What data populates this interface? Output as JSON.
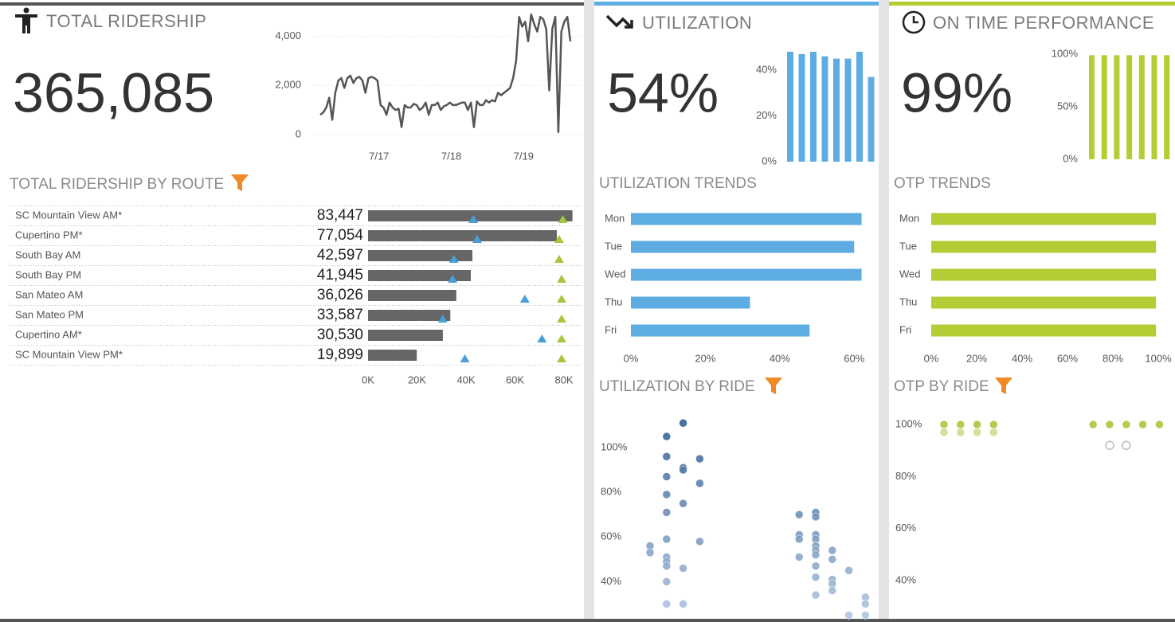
{
  "chart_data": [
    {
      "type": "line",
      "title": "TOTAL RIDERSHIP",
      "kpi": "365,085",
      "color": "#555555",
      "grid": true,
      "values": [
        800,
        900,
        1100,
        1500,
        600,
        1700,
        2200,
        2300,
        1900,
        2300,
        2400,
        2100,
        2300,
        2350,
        2200,
        1700,
        2300,
        2350,
        2300,
        2200,
        1200,
        1100,
        800,
        1300,
        1100,
        1000,
        1050,
        300,
        1200,
        1100,
        1100,
        1250,
        1200,
        1000,
        1100,
        1300,
        800,
        1200,
        1200,
        1300,
        1000,
        1150,
        1200,
        1300,
        1200,
        1200,
        1250,
        1300,
        1300,
        1000,
        1300,
        300,
        1350,
        1200,
        1200,
        1400,
        1300,
        1400,
        1350,
        1700,
        1600,
        1700,
        1800,
        1900,
        2300,
        3000,
        4800,
        4400,
        4600,
        3800,
        4900,
        4500,
        4200,
        4800,
        4700,
        4300,
        1800,
        4300,
        4800,
        100,
        4200,
        4600,
        4800,
        3800
      ],
      "xlim": [
        0,
        83
      ],
      "xticks": [
        {
          "value": 19.5,
          "label": "7/17"
        },
        {
          "value": 43.5,
          "label": "7/18"
        },
        {
          "value": 67.5,
          "label": "7/19"
        }
      ],
      "ylim": [
        -200,
        5000
      ],
      "yticks": [
        0,
        {
          "value": 2000,
          "label": "2,000"
        },
        {
          "value": 4000,
          "label": "4,000"
        }
      ]
    },
    {
      "type": "barh",
      "title": "TOTAL RIDERSHIP BY ROUTE",
      "color": "#666666",
      "categories": [
        "SC Mountain View AM*",
        "Cupertino PM*",
        "South Bay AM",
        "South Bay PM",
        "San Mateo AM",
        "San Mateo PM",
        "Cupertino AM*",
        "SC Mountain View PM*"
      ],
      "values": [
        83447,
        77054,
        42597,
        41945,
        36026,
        33587,
        30530,
        19899
      ],
      "value_labels": [
        "83,447",
        "77,054",
        "42,597",
        "41,945",
        "36,026",
        "33,587",
        "30,530",
        "19,899"
      ],
      "markers": [
        {
          "color": "#4a9fd8",
          "values": [
            43000,
            44500,
            35000,
            34500,
            64000,
            30500,
            71000,
            39500
          ]
        },
        {
          "color": "#a8c63c",
          "values": [
            79500,
            78000,
            78000,
            79000,
            79000,
            79000,
            79000,
            79000
          ]
        }
      ],
      "xlim": [
        0,
        86000
      ],
      "xticks": [
        {
          "value": 0,
          "label": "0K"
        },
        {
          "value": 20000,
          "label": "20K"
        },
        {
          "value": 40000,
          "label": "40K"
        },
        {
          "value": 60000,
          "label": "60K"
        },
        {
          "value": 80000,
          "label": "80K"
        }
      ]
    },
    {
      "type": "bar",
      "title": "UTILIZATION",
      "kpi": "54%",
      "color": "#5dade2",
      "values": [
        48,
        47,
        48,
        46,
        45,
        45,
        48,
        37
      ],
      "ylim": [
        0,
        50
      ],
      "yticks": [
        {
          "value": 0,
          "label": "0%"
        },
        {
          "value": 20,
          "label": "20%"
        },
        {
          "value": 40,
          "label": "40%"
        }
      ]
    },
    {
      "type": "bar",
      "title": "ON TIME PERFORMANCE",
      "kpi": "99%",
      "color": "#b5cc34",
      "values": [
        99,
        99,
        99,
        99,
        99,
        99,
        99
      ],
      "ylim": [
        0,
        100
      ],
      "yticks": [
        {
          "value": 0,
          "label": "0%"
        },
        {
          "value": 50,
          "label": "50%"
        },
        {
          "value": 100,
          "label": "100%"
        }
      ]
    },
    {
      "type": "barh",
      "title": "UTILIZATION TRENDS",
      "color": "#5dade2",
      "categories": [
        "Mon",
        "Tue",
        "Wed",
        "Thu",
        "Fri"
      ],
      "values": [
        62,
        60,
        62,
        32,
        48
      ],
      "xlim": [
        0,
        65
      ],
      "xticks": [
        {
          "value": 0,
          "label": "0%"
        },
        {
          "value": 20,
          "label": "20%"
        },
        {
          "value": 40,
          "label": "40%"
        },
        {
          "value": 60,
          "label": "60%"
        }
      ]
    },
    {
      "type": "barh",
      "title": "OTP TRENDS",
      "color": "#b5cc34",
      "categories": [
        "Mon",
        "Tue",
        "Wed",
        "Thu",
        "Fri"
      ],
      "values": [
        99,
        99,
        99,
        99,
        99
      ],
      "xlim": [
        0,
        100
      ],
      "xticks": [
        {
          "value": 0,
          "label": "0%"
        },
        {
          "value": 20,
          "label": "20%"
        },
        {
          "value": 40,
          "label": "40%"
        },
        {
          "value": 60,
          "label": "60%"
        },
        {
          "value": 80,
          "label": "80%"
        },
        {
          "value": 100,
          "label": "100%"
        }
      ]
    },
    {
      "type": "scatter",
      "title": "UTILIZATION BY RIDE",
      "color_scale": [
        "#b4c8e2",
        "#2f5d91"
      ],
      "series": [
        {
          "x": [
            0,
            0,
            1,
            1,
            1,
            1,
            1,
            1,
            1,
            1,
            1,
            1,
            1,
            2,
            2,
            2,
            2,
            2,
            2,
            3,
            3,
            3,
            9,
            9,
            9,
            9,
            10,
            10,
            10,
            10,
            10,
            10,
            10,
            10,
            10,
            10,
            11,
            11,
            11,
            11,
            11,
            12,
            12,
            13,
            13,
            13
          ],
          "values": [
            56,
            53,
            105,
            96,
            87,
            79,
            71,
            59,
            51,
            49,
            47,
            40,
            30,
            111,
            91,
            90,
            75,
            46,
            30,
            95,
            84,
            58,
            70,
            61,
            59,
            51,
            71,
            69,
            61,
            59,
            56,
            54,
            52,
            47,
            42,
            34,
            54,
            50,
            41,
            39,
            36,
            45,
            25,
            33,
            30,
            25
          ]
        }
      ],
      "xlim": [
        -2,
        13.5
      ],
      "ylim": [
        23,
        115
      ],
      "yticks": [
        {
          "value": 40,
          "label": "40%"
        },
        {
          "value": 60,
          "label": "60%"
        },
        {
          "value": 80,
          "label": "80%"
        },
        {
          "value": 100,
          "label": "100%"
        }
      ]
    },
    {
      "type": "scatter",
      "title": "OTP BY RIDE",
      "series": [
        {
          "color": "#a8c63c",
          "x": [
            0,
            1,
            2,
            3,
            9,
            10,
            11,
            12,
            13
          ],
          "values": [
            100,
            100,
            100,
            100,
            100,
            100,
            100,
            100,
            100
          ]
        },
        {
          "color": "#cddd8f",
          "x": [
            0,
            1,
            2,
            3
          ],
          "values": [
            97,
            97,
            97,
            97
          ]
        },
        {
          "color": "#bbbbbb",
          "hollow": true,
          "x": [
            10,
            11
          ],
          "values": [
            92,
            92
          ]
        }
      ],
      "xlim": [
        -2,
        13.5
      ],
      "ylim": [
        25,
        104
      ],
      "yticks": [
        {
          "value": 40,
          "label": "40%"
        },
        {
          "value": 60,
          "label": "60%"
        },
        {
          "value": 80,
          "label": "80%"
        },
        {
          "value": 100,
          "label": "100%"
        }
      ]
    }
  ]
}
